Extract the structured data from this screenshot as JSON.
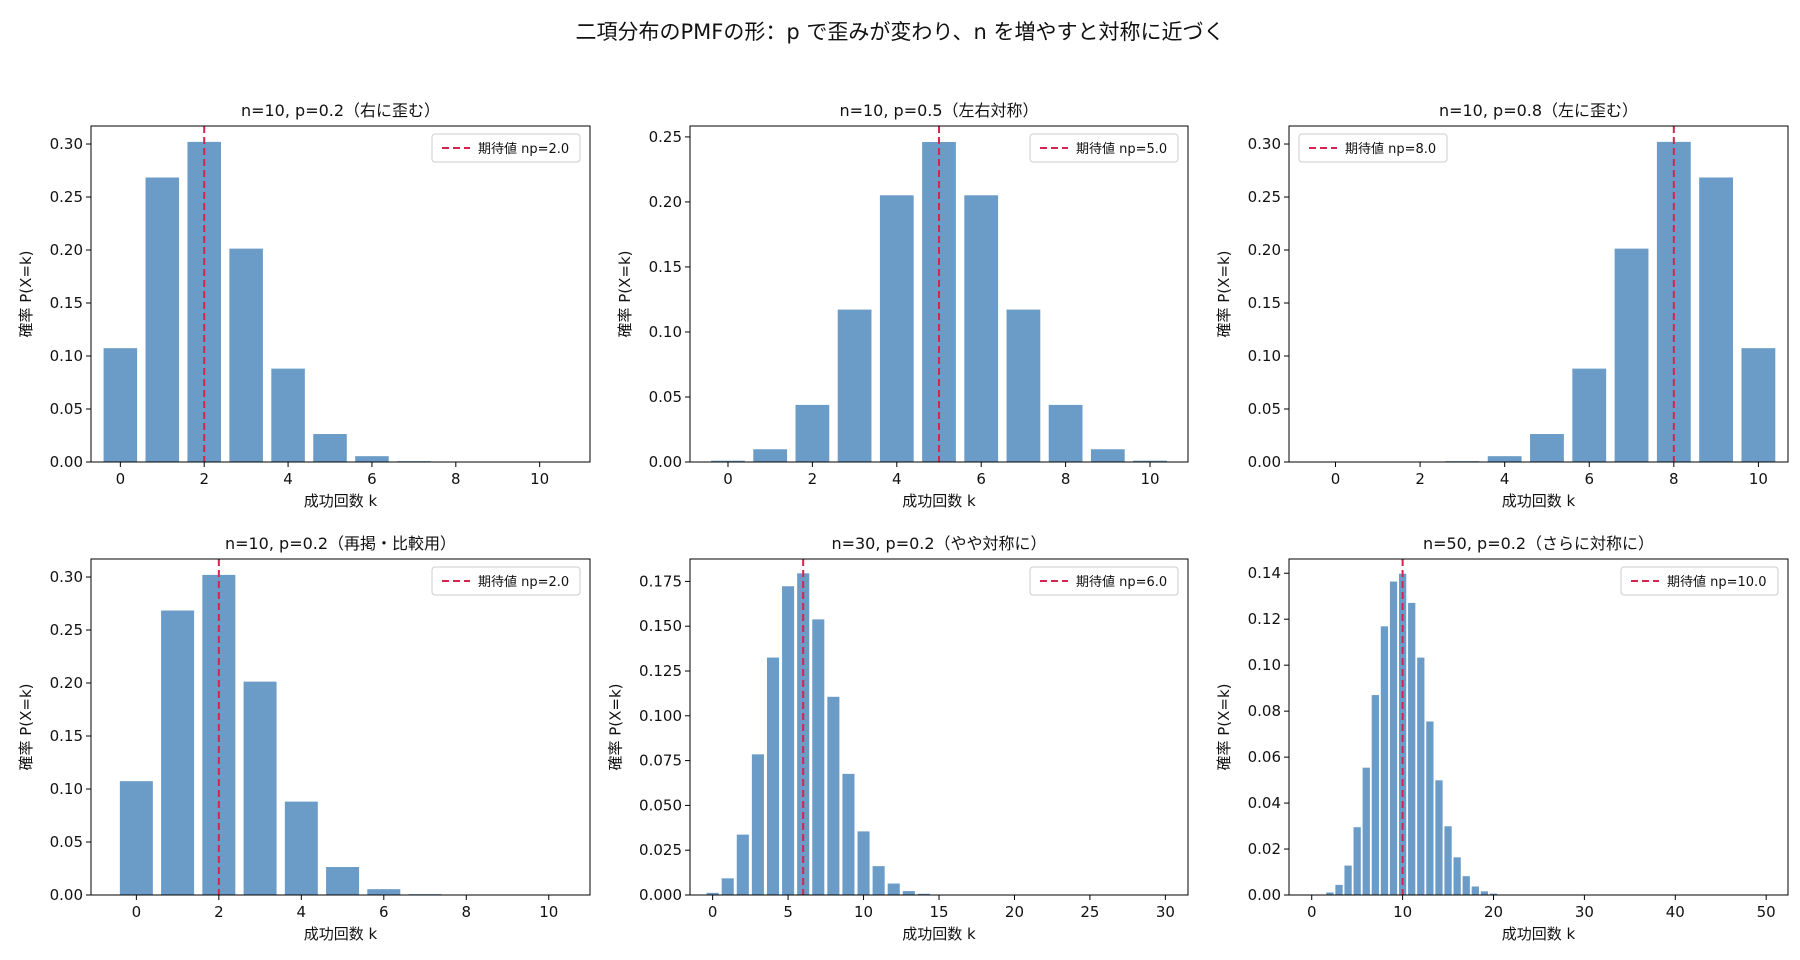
{
  "figure": {
    "title": "二項分布のPMFの形：p で歪みが変わり、n を増やすと対称に近づく"
  },
  "colors": {
    "bar": "#4a86bb",
    "mean_line": "#d2264f",
    "axis": "#000000",
    "legend_border": "#cccccc"
  },
  "chart_data": [
    {
      "type": "bar",
      "title": "n=10, p=0.2（右に歪む）",
      "xlabel": "成功回数 k",
      "ylabel": "確率 P(X=k)",
      "legend": "期待値 np=2.0",
      "legend_loc": "upper right",
      "mean": 2.0,
      "xlim": [
        -0.7,
        11.2
      ],
      "ylim": [
        0,
        0.317
      ],
      "xticks": [
        0,
        2,
        4,
        6,
        8,
        10
      ],
      "xtick_labels": [
        "0",
        "2",
        "4",
        "6",
        "8",
        "10"
      ],
      "yticks": [
        0,
        0.05,
        0.1,
        0.15,
        0.2,
        0.25,
        0.3
      ],
      "ytick_labels": [
        "0.00",
        "0.05",
        "0.10",
        "0.15",
        "0.20",
        "0.25",
        "0.30"
      ],
      "x": [
        0,
        1,
        2,
        3,
        4,
        5,
        6,
        7,
        8,
        9,
        10
      ],
      "values": [
        0.1074,
        0.2684,
        0.302,
        0.2013,
        0.0881,
        0.0264,
        0.0055,
        0.0008,
        0.0001,
        0.0,
        0.0
      ]
    },
    {
      "type": "bar",
      "title": "n=10, p=0.5（左右対称）",
      "xlabel": "成功回数 k",
      "ylabel": "確率 P(X=k)",
      "legend": "期待値 np=5.0",
      "legend_loc": "upper right",
      "mean": 5.0,
      "xlim": [
        -0.9,
        10.9
      ],
      "ylim": [
        0,
        0.2584
      ],
      "xticks": [
        0,
        2,
        4,
        6,
        8,
        10
      ],
      "xtick_labels": [
        "0",
        "2",
        "4",
        "6",
        "8",
        "10"
      ],
      "yticks": [
        0,
        0.05,
        0.1,
        0.15,
        0.2,
        0.25
      ],
      "ytick_labels": [
        "0.00",
        "0.05",
        "0.10",
        "0.15",
        "0.20",
        "0.25"
      ],
      "x": [
        0,
        1,
        2,
        3,
        4,
        5,
        6,
        7,
        8,
        9,
        10
      ],
      "values": [
        0.001,
        0.0098,
        0.0439,
        0.1172,
        0.2051,
        0.2461,
        0.2051,
        0.1172,
        0.0439,
        0.0098,
        0.001
      ]
    },
    {
      "type": "bar",
      "title": "n=10, p=0.8（左に歪む）",
      "xlabel": "成功回数 k",
      "ylabel": "確率 P(X=k)",
      "legend": "期待値 np=8.0",
      "legend_loc": "upper left",
      "mean": 8.0,
      "xlim": [
        -1.1,
        10.7
      ],
      "ylim": [
        0,
        0.317
      ],
      "xticks": [
        0,
        2,
        4,
        6,
        8,
        10
      ],
      "xtick_labels": [
        "0",
        "2",
        "4",
        "6",
        "8",
        "10"
      ],
      "yticks": [
        0,
        0.05,
        0.1,
        0.15,
        0.2,
        0.25,
        0.3
      ],
      "ytick_labels": [
        "0.00",
        "0.05",
        "0.10",
        "0.15",
        "0.20",
        "0.25",
        "0.30"
      ],
      "x": [
        0,
        1,
        2,
        3,
        4,
        5,
        6,
        7,
        8,
        9,
        10
      ],
      "values": [
        0.0,
        0.0,
        0.0001,
        0.0008,
        0.0055,
        0.0264,
        0.0881,
        0.2013,
        0.302,
        0.2684,
        0.1074
      ]
    },
    {
      "type": "bar",
      "title": "n=10, p=0.2（再掲・比較用）",
      "xlabel": "成功回数 k",
      "ylabel": "確率 P(X=k)",
      "legend": "期待値 np=2.0",
      "legend_loc": "upper right",
      "mean": 2.0,
      "xlim": [
        -1.1,
        11.0
      ],
      "ylim": [
        0,
        0.317
      ],
      "xticks": [
        0,
        2,
        4,
        6,
        8,
        10
      ],
      "xtick_labels": [
        "0",
        "2",
        "4",
        "6",
        "8",
        "10"
      ],
      "yticks": [
        0,
        0.05,
        0.1,
        0.15,
        0.2,
        0.25,
        0.3
      ],
      "ytick_labels": [
        "0.00",
        "0.05",
        "0.10",
        "0.15",
        "0.20",
        "0.25",
        "0.30"
      ],
      "x": [
        0,
        1,
        2,
        3,
        4,
        5,
        6,
        7,
        8,
        9,
        10
      ],
      "values": [
        0.1074,
        0.2684,
        0.302,
        0.2013,
        0.0881,
        0.0264,
        0.0055,
        0.0008,
        0.0001,
        0.0,
        0.0
      ]
    },
    {
      "type": "bar",
      "title": "n=30, p=0.2（やや対称に）",
      "xlabel": "成功回数 k",
      "ylabel": "確率 P(X=k)",
      "legend": "期待値 np=6.0",
      "legend_loc": "upper right",
      "mean": 6.0,
      "xlim": [
        -1.5,
        31.5
      ],
      "ylim": [
        0,
        0.1875
      ],
      "xticks": [
        0,
        5,
        10,
        15,
        20,
        25,
        30
      ],
      "xtick_labels": [
        "0",
        "5",
        "10",
        "15",
        "20",
        "25",
        "30"
      ],
      "yticks": [
        0,
        0.025,
        0.05,
        0.075,
        0.1,
        0.125,
        0.15,
        0.175
      ],
      "ytick_labels": [
        "0.000",
        "0.025",
        "0.050",
        "0.075",
        "0.100",
        "0.125",
        "0.150",
        "0.175"
      ],
      "x": [
        0,
        1,
        2,
        3,
        4,
        5,
        6,
        7,
        8,
        9,
        10,
        11,
        12,
        13,
        14,
        15,
        16,
        17,
        18,
        19,
        20,
        21,
        22,
        23,
        24,
        25,
        26,
        27,
        28,
        29,
        30
      ],
      "values": [
        0.0012,
        0.0093,
        0.0337,
        0.0785,
        0.1325,
        0.1723,
        0.1795,
        0.1538,
        0.1106,
        0.0676,
        0.0355,
        0.0161,
        0.0064,
        0.0022,
        0.0007,
        0.0002,
        0,
        0,
        0,
        0,
        0,
        0,
        0,
        0,
        0,
        0,
        0,
        0,
        0,
        0,
        0
      ]
    },
    {
      "type": "bar",
      "title": "n=50, p=0.2（さらに対称に）",
      "xlabel": "成功回数 k",
      "ylabel": "確率 P(X=k)",
      "legend": "期待値 np=10.0",
      "legend_loc": "upper right",
      "mean": 10.0,
      "xlim": [
        -2.5,
        52.4
      ],
      "ylim": [
        0,
        0.1462
      ],
      "xticks": [
        0,
        10,
        20,
        30,
        40,
        50
      ],
      "xtick_labels": [
        "0",
        "10",
        "20",
        "30",
        "40",
        "50"
      ],
      "yticks": [
        0,
        0.02,
        0.04,
        0.06,
        0.08,
        0.1,
        0.12,
        0.14
      ],
      "ytick_labels": [
        "0.00",
        "0.02",
        "0.04",
        "0.06",
        "0.08",
        "0.10",
        "0.12",
        "0.14"
      ],
      "x": [
        0,
        1,
        2,
        3,
        4,
        5,
        6,
        7,
        8,
        9,
        10,
        11,
        12,
        13,
        14,
        15,
        16,
        17,
        18,
        19,
        20,
        21,
        22,
        23,
        24,
        25,
        26,
        27,
        28,
        29,
        30,
        31,
        32,
        33,
        34,
        35,
        36,
        37,
        38,
        39,
        40,
        41,
        42,
        43,
        44,
        45,
        46,
        47,
        48,
        49,
        50
      ],
      "values": [
        0.0,
        0.0002,
        0.0011,
        0.0044,
        0.0128,
        0.0295,
        0.0554,
        0.087,
        0.1169,
        0.1364,
        0.1398,
        0.1271,
        0.1033,
        0.0755,
        0.0499,
        0.0299,
        0.0164,
        0.0082,
        0.0037,
        0.0016,
        0.0006,
        0.0002,
        0.0001,
        0,
        0,
        0,
        0,
        0,
        0,
        0,
        0,
        0,
        0,
        0,
        0,
        0,
        0,
        0,
        0,
        0,
        0,
        0,
        0,
        0,
        0,
        0,
        0,
        0,
        0,
        0,
        0
      ]
    }
  ]
}
